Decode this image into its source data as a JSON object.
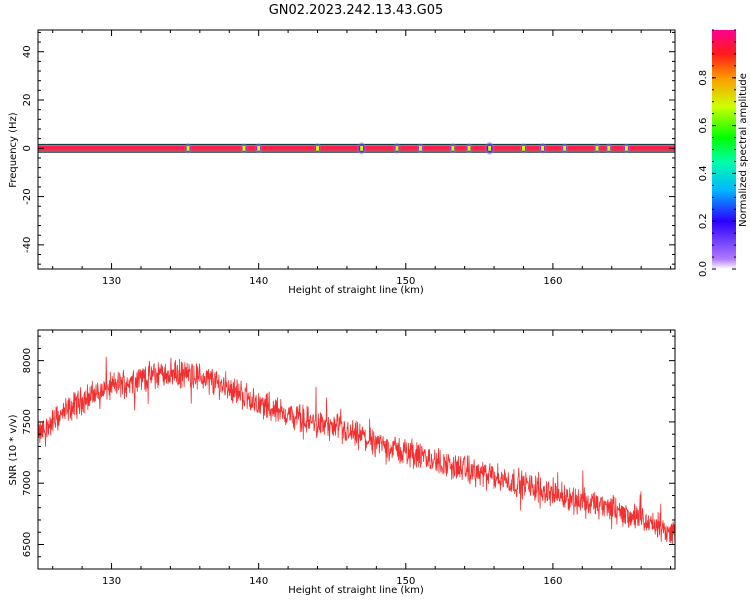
{
  "figure_title": "GN02.2023.242.13.43.G05",
  "chart_data": [
    {
      "type": "heatmap",
      "xlabel": "Height of straight line (km)",
      "ylabel": "Frequency (Hz)",
      "xlim": [
        125.0,
        168.3
      ],
      "ylim": [
        -50,
        49
      ],
      "x_ticks": [
        130,
        140,
        150,
        160
      ],
      "y_ticks": [
        -40,
        -20,
        0,
        20,
        40
      ],
      "grid": false,
      "band": {
        "frequency": 0,
        "half_width": 1.0,
        "amplitude": 0.93
      },
      "spots": [
        {
          "x": 135.2,
          "a": 0.12
        },
        {
          "x": 139.0,
          "a": 0.1
        },
        {
          "x": 140.0,
          "a": 0.11
        },
        {
          "x": 144.0,
          "a": 0.12
        },
        {
          "x": 147.0,
          "a": 0.25
        },
        {
          "x": 149.4,
          "a": 0.15
        },
        {
          "x": 151.0,
          "a": 0.08
        },
        {
          "x": 153.2,
          "a": 0.12
        },
        {
          "x": 154.3,
          "a": 0.1
        },
        {
          "x": 155.7,
          "a": 0.3
        },
        {
          "x": 158.0,
          "a": 0.12
        },
        {
          "x": 159.3,
          "a": 0.14
        },
        {
          "x": 160.8,
          "a": 0.1
        },
        {
          "x": 163.0,
          "a": 0.1
        },
        {
          "x": 163.8,
          "a": 0.1
        },
        {
          "x": 165.0,
          "a": 0.08
        }
      ],
      "colorbar": {
        "label": "Normalized spectral amplitude",
        "range": [
          0,
          1
        ],
        "ticks": [
          0.0,
          0.2,
          0.4,
          0.6,
          0.8
        ],
        "colors": [
          "#ffffff",
          "#b27cff",
          "#2b00ff",
          "#00b7ff",
          "#00ffaa",
          "#00ff00",
          "#ccff00",
          "#ff9900",
          "#ff1a1a",
          "#ff0090"
        ]
      }
    },
    {
      "type": "line",
      "xlabel": "Height of straight line (km)",
      "ylabel": "SNR (10 * v/v)",
      "xlim": [
        125.0,
        168.3
      ],
      "ylim": [
        6300,
        8250
      ],
      "x_ticks": [
        130,
        140,
        150,
        160
      ],
      "y_ticks": [
        6500,
        7000,
        7500,
        8000
      ],
      "grid": false,
      "color": "#f03030",
      "trend": [
        [
          125.0,
          7390
        ],
        [
          126.0,
          7500
        ],
        [
          128.0,
          7680
        ],
        [
          130.0,
          7790
        ],
        [
          132.0,
          7860
        ],
        [
          134.0,
          7900
        ],
        [
          136.0,
          7870
        ],
        [
          138.0,
          7780
        ],
        [
          140.0,
          7650
        ],
        [
          142.0,
          7560
        ],
        [
          144.0,
          7490
        ],
        [
          146.0,
          7410
        ],
        [
          148.0,
          7330
        ],
        [
          150.0,
          7250
        ],
        [
          152.0,
          7180
        ],
        [
          154.0,
          7110
        ],
        [
          156.0,
          7050
        ],
        [
          158.0,
          6990
        ],
        [
          160.0,
          6920
        ],
        [
          162.0,
          6850
        ],
        [
          164.0,
          6790
        ],
        [
          166.0,
          6700
        ],
        [
          168.3,
          6580
        ]
      ],
      "noise_band": 150
    }
  ]
}
